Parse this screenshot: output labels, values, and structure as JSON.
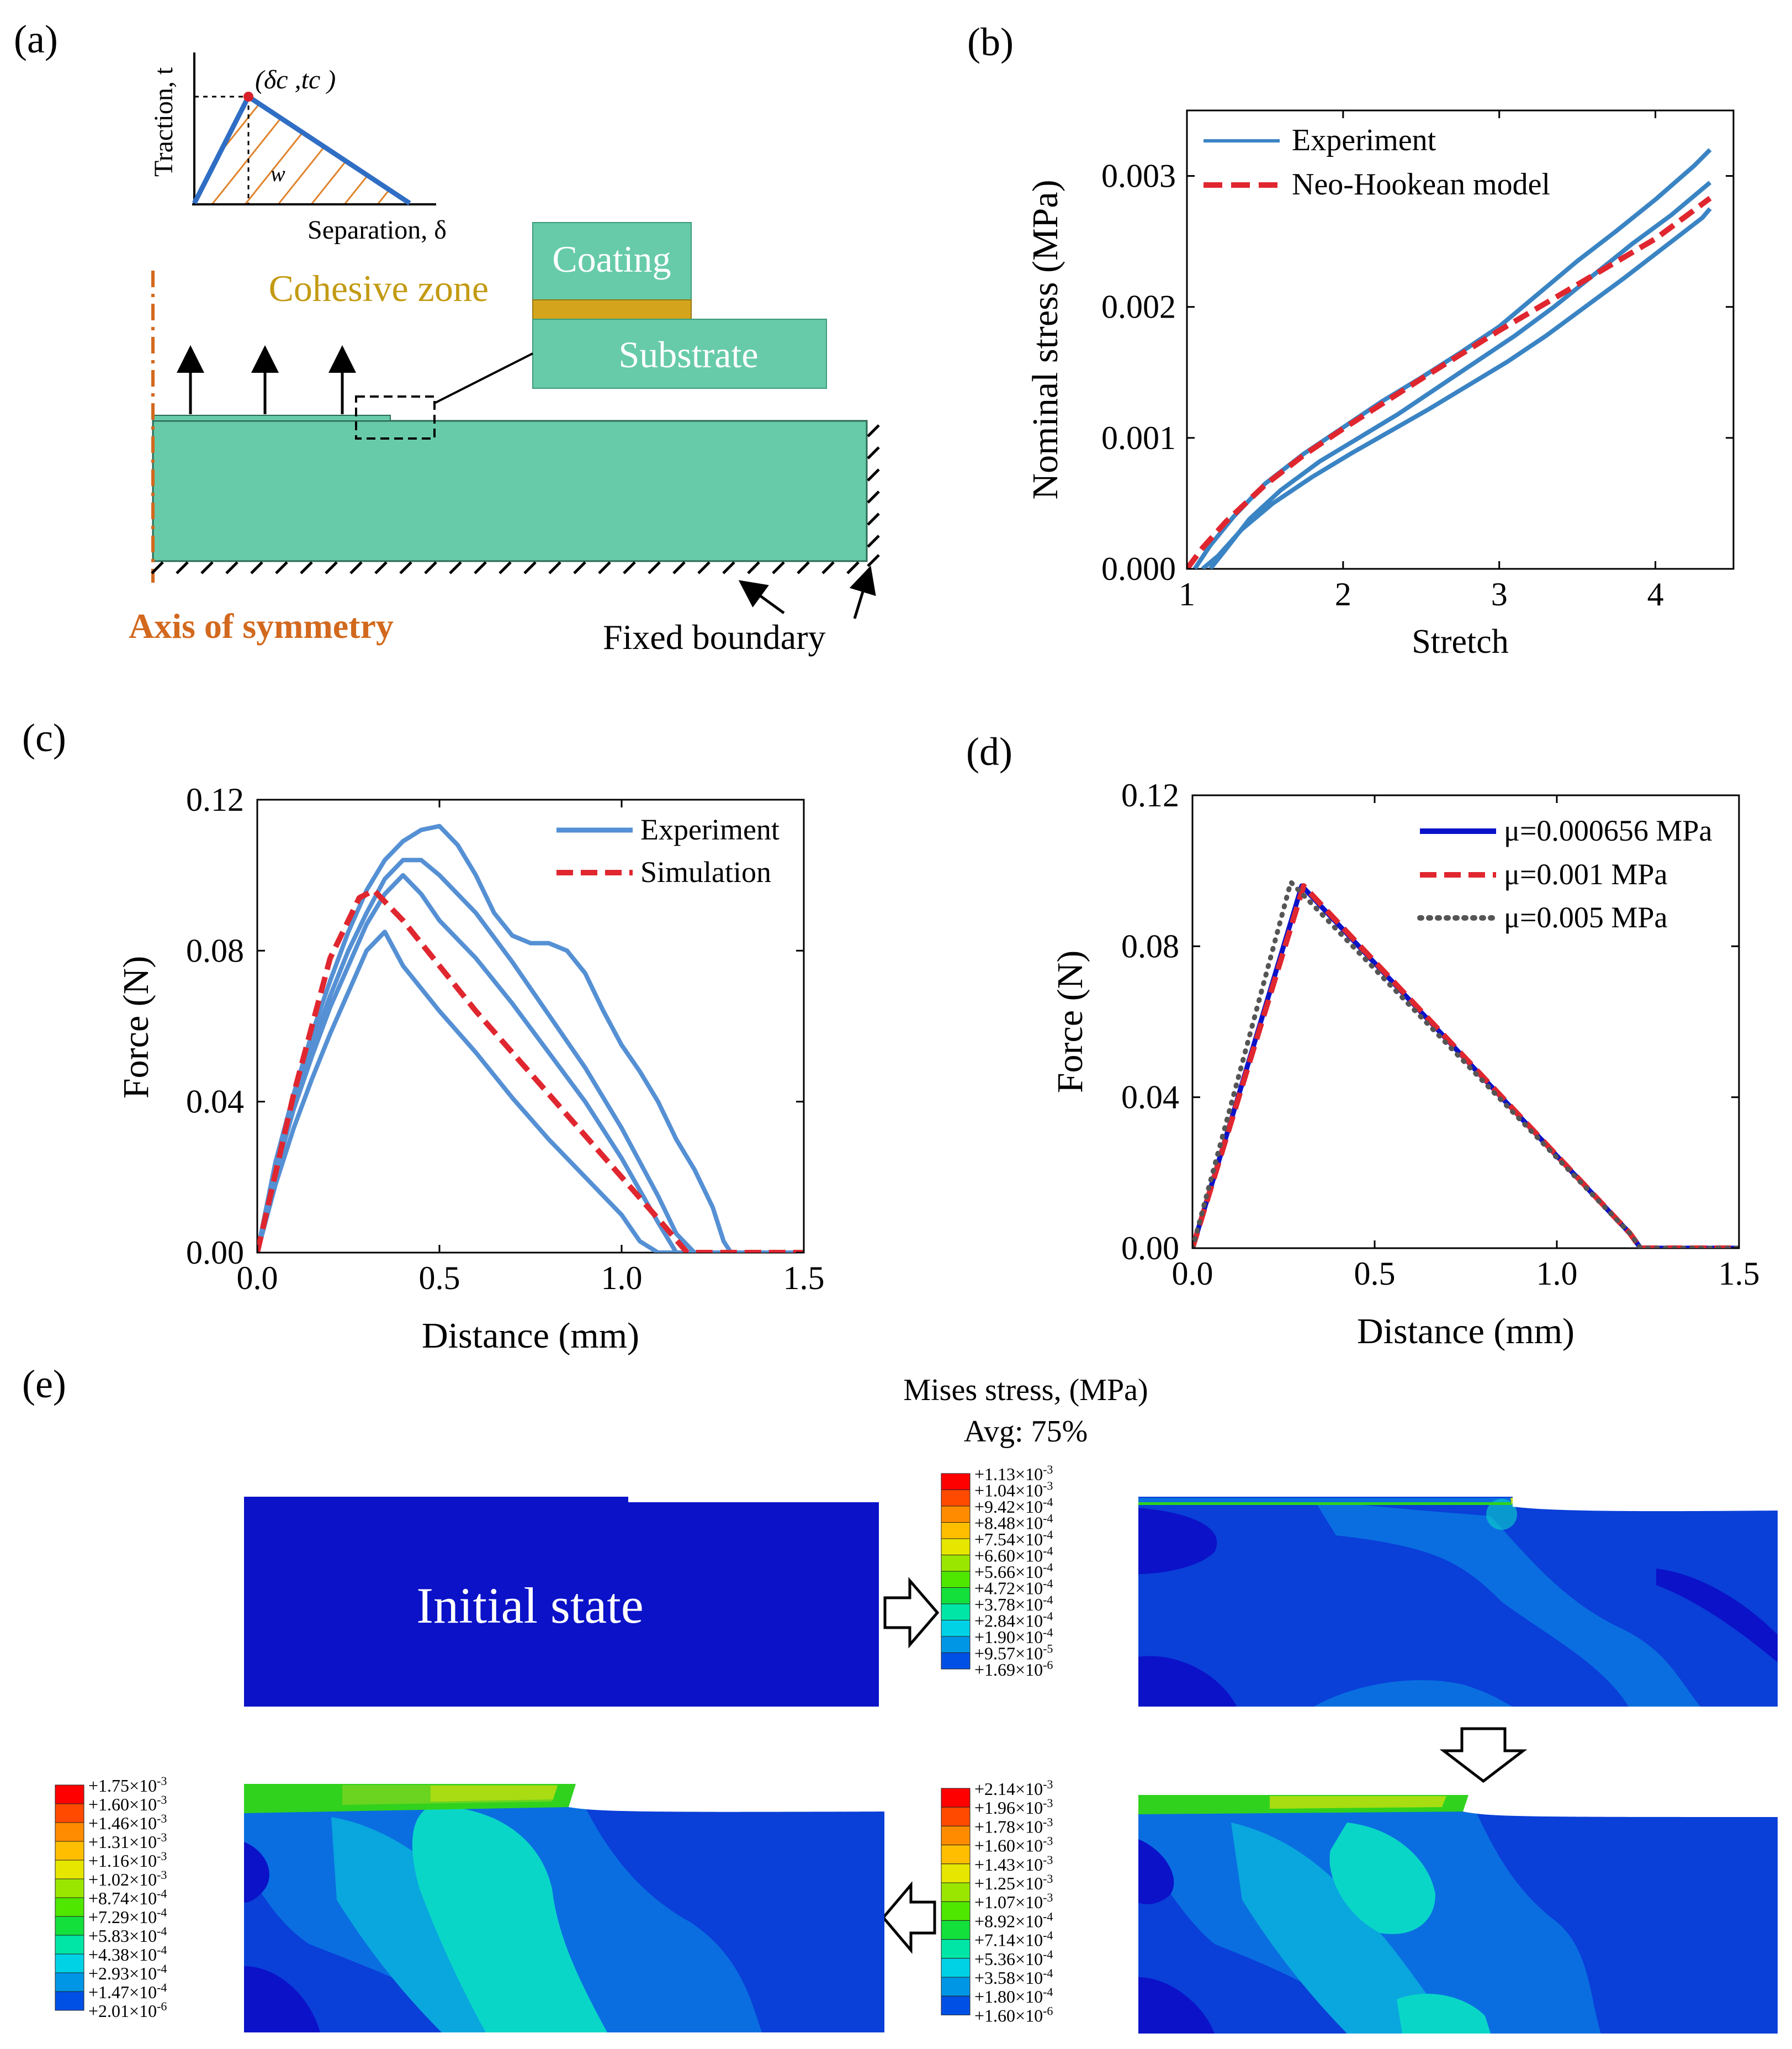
{
  "colors": {
    "green": "#67cba9",
    "cohesive": "#d4a51c",
    "orange": "#d2691e",
    "blue_exp": "#3a84c4",
    "blue_c": "#5590d4",
    "red_model": "#e0262f",
    "navy": "#0a12c9",
    "gray_dot": "#555555",
    "fem_navy": "#0b12c8",
    "fem_blue": "#0a3fd8",
    "fem_blue2": "#0a6ee0",
    "fem_light": "#0aa6de",
    "fem_cyan": "#0ad6c8",
    "fem_green": "#30d21e",
    "fem_yellow": "#c6e00e",
    "cz_label": "#c39a12"
  },
  "panels": {
    "a": {
      "label": "(a)",
      "tsl": {
        "ylabel": "Traction, t",
        "xlabel": "Separation, δ",
        "peak_label": "(δc ,tc )",
        "area_label": "w"
      },
      "coating": "Coating",
      "cohesive_zone": "Cohesive zone",
      "substrate": "Substrate",
      "axis_symmetry": "Axis of symmetry",
      "fixed_boundary": "Fixed boundary"
    },
    "b": {
      "label": "(b)"
    },
    "c": {
      "label": "(c)"
    },
    "d": {
      "label": "(d)"
    },
    "e": {
      "label": "(e)",
      "title": "Mises stress, (MPa)",
      "avg": "Avg: 75%",
      "initial_state": "Initial state",
      "legend1": [
        "+1.13×10-3",
        "+1.04×10-3",
        "+9.42×10-4",
        "+8.48×10-4",
        "+7.54×10-4",
        "+6.60×10-4",
        "+5.66×10-4",
        "+4.72×10-4",
        "+3.78×10-4",
        "+2.84×10-4",
        "+1.90×10-4",
        "+9.57×10-5",
        "+1.69×10-6"
      ],
      "legend2": [
        "+2.14×10-3",
        "+1.96×10-3",
        "+1.78×10-3",
        "+1.60×10-3",
        "+1.43×10-3",
        "+1.25×10-3",
        "+1.07×10-3",
        "+8.92×10-4",
        "+7.14×10-4",
        "+5.36×10-4",
        "+3.58×10-4",
        "+1.80×10-4",
        "+1.60×10-6"
      ],
      "legend3": [
        "+1.75×10-3",
        "+1.60×10-3",
        "+1.46×10-3",
        "+1.31×10-3",
        "+1.16×10-3",
        "+1.02×10-3",
        "+8.74×10-4",
        "+7.29×10-4",
        "+5.83×10-4",
        "+4.38×10-4",
        "+2.93×10-4",
        "+1.47×10-4",
        "+2.01×10-6"
      ],
      "legend_colors": [
        "#ff0000",
        "#ff4a00",
        "#ff8c00",
        "#ffbf00",
        "#e6e600",
        "#9be600",
        "#4fe600",
        "#14e03c",
        "#00e6a6",
        "#00d2e6",
        "#0096e6",
        "#0050e6",
        "#0000e6"
      ]
    }
  },
  "chart_data": [
    {
      "id": "b",
      "type": "line",
      "xlabel": "Stretch",
      "ylabel": "Nominal stress (MPa)",
      "xlim": [
        1,
        4.5
      ],
      "ylim": [
        0,
        0.0035
      ],
      "xticks": [
        1,
        2,
        3,
        4
      ],
      "yticks": [
        0.0,
        0.001,
        0.002,
        0.003
      ],
      "xtick_labels": [
        "1",
        "2",
        "3",
        "4"
      ],
      "ytick_labels": [
        "0.000",
        "0.001",
        "0.002",
        "0.003"
      ],
      "legend": [
        "Experiment",
        "Neo-Hookean model"
      ],
      "series": [
        {
          "name": "Experiment",
          "style": "exp",
          "x": [
            1.05,
            1.15,
            1.3,
            1.5,
            1.75,
            2.0,
            2.25,
            2.5,
            2.75,
            3.0,
            3.25,
            3.5,
            3.75,
            4.0,
            4.25,
            4.35
          ],
          "y": [
            0.0,
            0.00018,
            0.0004,
            0.00065,
            0.00088,
            0.00108,
            0.00128,
            0.00146,
            0.00165,
            0.00185,
            0.0021,
            0.00235,
            0.00258,
            0.00282,
            0.00308,
            0.0032
          ]
        },
        {
          "name": "Experiment",
          "style": "exp",
          "x": [
            1.1,
            1.2,
            1.35,
            1.55,
            1.8,
            2.05,
            2.3,
            2.55,
            2.8,
            3.05,
            3.3,
            3.55,
            3.8,
            4.05,
            4.3,
            4.35
          ],
          "y": [
            0.0,
            0.0001,
            0.0003,
            0.0005,
            0.0007,
            0.00088,
            0.00105,
            0.00122,
            0.0014,
            0.00158,
            0.00178,
            0.002,
            0.00222,
            0.00245,
            0.00268,
            0.00275
          ]
        },
        {
          "name": "Experiment",
          "style": "exp",
          "x": [
            1.15,
            1.25,
            1.4,
            1.6,
            1.85,
            2.1,
            2.35,
            2.6,
            2.85,
            3.1,
            3.35,
            3.6,
            3.85,
            4.1,
            4.35
          ],
          "y": [
            0.0,
            0.00015,
            0.00038,
            0.0006,
            0.00082,
            0.001,
            0.00118,
            0.00138,
            0.00158,
            0.00178,
            0.002,
            0.00224,
            0.00248,
            0.0027,
            0.00295
          ]
        },
        {
          "name": "Neo-Hookean model",
          "style": "model",
          "x": [
            1.0,
            1.1,
            1.25,
            1.5,
            1.75,
            2.0,
            2.5,
            3.0,
            3.5,
            4.0,
            4.35
          ],
          "y": [
            0.0,
            0.00016,
            0.00036,
            0.00064,
            0.00087,
            0.00107,
            0.00145,
            0.00182,
            0.00217,
            0.00252,
            0.00283
          ]
        }
      ]
    },
    {
      "id": "c",
      "type": "line",
      "xlabel": "Distance (mm)",
      "ylabel": "Force (N)",
      "xlim": [
        0,
        1.5
      ],
      "ylim": [
        0,
        0.12
      ],
      "xticks": [
        0,
        0.5,
        1.0,
        1.5
      ],
      "yticks": [
        0,
        0.04,
        0.08,
        0.12
      ],
      "xtick_labels": [
        "0.0",
        "0.5",
        "1.0",
        "1.5"
      ],
      "ytick_labels": [
        "0.00",
        "0.04",
        "0.08",
        "0.12"
      ],
      "legend": [
        "Experiment",
        "Simulation"
      ],
      "series": [
        {
          "name": "Experiment",
          "style": "exp",
          "x": [
            0,
            0.05,
            0.1,
            0.15,
            0.2,
            0.25,
            0.3,
            0.35,
            0.4,
            0.45,
            0.5,
            0.55,
            0.6,
            0.65,
            0.7,
            0.75,
            0.8,
            0.85,
            0.9,
            0.95,
            1.0,
            1.05,
            1.1,
            1.15,
            1.2,
            1.25,
            1.28,
            1.3,
            1.5
          ],
          "y": [
            0,
            0.024,
            0.042,
            0.058,
            0.072,
            0.085,
            0.096,
            0.104,
            0.109,
            0.112,
            0.113,
            0.108,
            0.1,
            0.09,
            0.084,
            0.082,
            0.082,
            0.08,
            0.074,
            0.064,
            0.055,
            0.048,
            0.04,
            0.03,
            0.022,
            0.012,
            0.003,
            0,
            0
          ]
        },
        {
          "name": "Experiment",
          "style": "exp",
          "x": [
            0,
            0.05,
            0.1,
            0.15,
            0.2,
            0.25,
            0.3,
            0.35,
            0.4,
            0.45,
            0.5,
            0.6,
            0.7,
            0.8,
            0.9,
            1.0,
            1.1,
            1.15,
            1.2,
            1.5
          ],
          "y": [
            0,
            0.022,
            0.04,
            0.055,
            0.068,
            0.08,
            0.09,
            0.099,
            0.104,
            0.104,
            0.1,
            0.09,
            0.077,
            0.063,
            0.049,
            0.033,
            0.015,
            0.005,
            0,
            0
          ]
        },
        {
          "name": "Experiment",
          "style": "exp",
          "x": [
            0,
            0.05,
            0.1,
            0.15,
            0.2,
            0.25,
            0.3,
            0.35,
            0.4,
            0.45,
            0.5,
            0.6,
            0.7,
            0.8,
            0.9,
            1.0,
            1.1,
            1.15,
            1.5
          ],
          "y": [
            0,
            0.021,
            0.038,
            0.052,
            0.065,
            0.076,
            0.087,
            0.095,
            0.1,
            0.095,
            0.088,
            0.078,
            0.066,
            0.053,
            0.04,
            0.025,
            0.008,
            0,
            0
          ]
        },
        {
          "name": "Experiment",
          "style": "exp",
          "x": [
            0,
            0.05,
            0.1,
            0.15,
            0.2,
            0.25,
            0.3,
            0.35,
            0.4,
            0.5,
            0.6,
            0.7,
            0.8,
            0.9,
            1.0,
            1.05,
            1.1,
            1.5
          ],
          "y": [
            0,
            0.018,
            0.033,
            0.046,
            0.058,
            0.069,
            0.08,
            0.085,
            0.076,
            0.064,
            0.053,
            0.041,
            0.03,
            0.02,
            0.01,
            0.003,
            0,
            0
          ]
        },
        {
          "name": "Simulation",
          "style": "model",
          "x": [
            0,
            0.1,
            0.2,
            0.28,
            0.32,
            0.4,
            0.5,
            0.6,
            0.7,
            0.8,
            0.9,
            1.0,
            1.1,
            1.18,
            1.2,
            1.5
          ],
          "y": [
            0,
            0.042,
            0.078,
            0.094,
            0.096,
            0.088,
            0.076,
            0.064,
            0.053,
            0.042,
            0.031,
            0.02,
            0.009,
            0,
            0,
            0
          ]
        }
      ]
    },
    {
      "id": "d",
      "type": "line",
      "xlabel": "Distance (mm)",
      "ylabel": "Force (N)",
      "xlim": [
        0,
        1.5
      ],
      "ylim": [
        0,
        0.12
      ],
      "xticks": [
        0,
        0.5,
        1.0,
        1.5
      ],
      "yticks": [
        0,
        0.04,
        0.08,
        0.12
      ],
      "xtick_labels": [
        "0.0",
        "0.5",
        "1.0",
        "1.5"
      ],
      "ytick_labels": [
        "0.00",
        "0.04",
        "0.08",
        "0.12"
      ],
      "legend": [
        "μ=0.000656 MPa",
        "μ=0.001 MPa",
        "μ=0.005 MPa"
      ],
      "series": [
        {
          "name": "μ=0.000656 MPa",
          "style": "solid",
          "x": [
            0,
            0.3,
            1.2,
            1.23,
            1.5
          ],
          "y": [
            0,
            0.096,
            0.004,
            0,
            0
          ]
        },
        {
          "name": "μ=0.001 MPa",
          "style": "dash",
          "x": [
            0,
            0.305,
            1.2,
            1.23,
            1.5
          ],
          "y": [
            0,
            0.096,
            0.004,
            0,
            0
          ]
        },
        {
          "name": "μ=0.005 MPa",
          "style": "dot",
          "x": [
            0,
            0.27,
            1.2,
            1.23,
            1.5
          ],
          "y": [
            0,
            0.097,
            0.004,
            0,
            0
          ]
        }
      ]
    }
  ]
}
